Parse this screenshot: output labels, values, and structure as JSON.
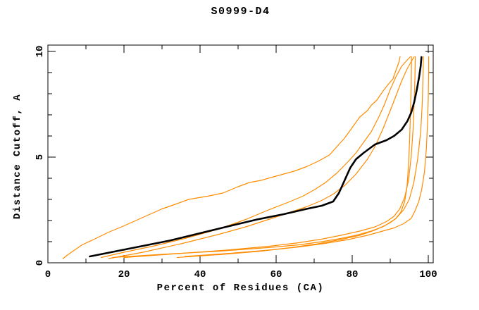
{
  "chart_data": {
    "type": "line",
    "title": "S0999-D4",
    "xlabel": "Percent of Residues (CA)",
    "ylabel": "Distance Cutoff, A",
    "xlim": [
      0,
      101.3
    ],
    "ylim": [
      0,
      10.3
    ],
    "x_major_ticks": [
      0,
      20,
      40,
      60,
      80,
      100
    ],
    "x_minor_ticks": [
      10,
      30,
      50,
      70,
      90
    ],
    "y_major_ticks": [
      0,
      5,
      10
    ],
    "y_minor_ticks": [
      1,
      2,
      3,
      4,
      6,
      7,
      8,
      9
    ],
    "grid": false,
    "legend": "none",
    "background": "#ffffff",
    "axis_color": "#000000",
    "model_color": "#ff8c00",
    "reference_color": "#000000",
    "series": [
      {
        "name": "orange-1-early",
        "color": "#ff8c00",
        "width": 1.2,
        "points": [
          [
            4,
            0.2
          ],
          [
            5,
            0.35
          ],
          [
            7,
            0.6
          ],
          [
            9,
            0.85
          ],
          [
            12,
            1.1
          ],
          [
            16,
            1.45
          ],
          [
            20,
            1.75
          ],
          [
            25,
            2.15
          ],
          [
            30,
            2.55
          ],
          [
            34,
            2.8
          ],
          [
            37,
            3.0
          ],
          [
            42,
            3.15
          ],
          [
            46,
            3.3
          ],
          [
            50,
            3.6
          ],
          [
            53,
            3.8
          ],
          [
            56,
            3.9
          ],
          [
            60,
            4.1
          ],
          [
            65,
            4.35
          ],
          [
            68,
            4.55
          ],
          [
            71,
            4.8
          ],
          [
            74,
            5.1
          ],
          [
            76,
            5.5
          ],
          [
            78,
            5.9
          ],
          [
            80,
            6.4
          ],
          [
            82,
            6.9
          ],
          [
            84,
            7.2
          ],
          [
            85,
            7.45
          ],
          [
            86.5,
            7.7
          ],
          [
            88,
            8.1
          ],
          [
            89.5,
            8.45
          ],
          [
            90.7,
            8.7
          ],
          [
            91.5,
            9.1
          ],
          [
            92.3,
            9.5
          ],
          [
            92.6,
            9.75
          ]
        ]
      },
      {
        "name": "orange-2-upper-tracker",
        "color": "#ff8c00",
        "width": 1.2,
        "points": [
          [
            14,
            0.25
          ],
          [
            20,
            0.5
          ],
          [
            28,
            0.8
          ],
          [
            36,
            1.15
          ],
          [
            45,
            1.6
          ],
          [
            52,
            2.05
          ],
          [
            58,
            2.5
          ],
          [
            63,
            2.85
          ],
          [
            67,
            3.15
          ],
          [
            70,
            3.45
          ],
          [
            73,
            3.8
          ],
          [
            76,
            4.25
          ],
          [
            79,
            4.8
          ],
          [
            81,
            5.2
          ],
          [
            83,
            5.7
          ],
          [
            85,
            6.2
          ],
          [
            87,
            6.9
          ],
          [
            88.5,
            7.5
          ],
          [
            90,
            8.2
          ],
          [
            91.5,
            8.8
          ],
          [
            93,
            9.3
          ],
          [
            94.5,
            9.6
          ],
          [
            95.3,
            9.75
          ]
        ]
      },
      {
        "name": "orange-3-lower-tracker",
        "color": "#ff8c00",
        "width": 1.2,
        "points": [
          [
            16,
            0.2
          ],
          [
            25,
            0.5
          ],
          [
            35,
            0.9
          ],
          [
            45,
            1.35
          ],
          [
            52,
            1.7
          ],
          [
            58,
            2.05
          ],
          [
            63,
            2.35
          ],
          [
            68,
            2.65
          ],
          [
            72,
            2.95
          ],
          [
            75,
            3.25
          ],
          [
            78,
            3.65
          ],
          [
            81,
            4.2
          ],
          [
            84,
            4.9
          ],
          [
            86,
            5.5
          ],
          [
            88,
            6.3
          ],
          [
            90,
            7.2
          ],
          [
            91.5,
            7.9
          ],
          [
            93,
            8.6
          ],
          [
            94.5,
            9.2
          ],
          [
            95.8,
            9.6
          ],
          [
            96.3,
            9.75
          ]
        ]
      },
      {
        "name": "orange-4-flat-bundle",
        "color": "#ff8c00",
        "width": 1.2,
        "points": [
          [
            17,
            0.25
          ],
          [
            30,
            0.4
          ],
          [
            45,
            0.55
          ],
          [
            58,
            0.72
          ],
          [
            66,
            0.85
          ],
          [
            72,
            1.0
          ],
          [
            77,
            1.15
          ],
          [
            81,
            1.3
          ],
          [
            85,
            1.5
          ],
          [
            88,
            1.7
          ],
          [
            90,
            1.9
          ],
          [
            91.5,
            2.1
          ],
          [
            92.8,
            2.4
          ],
          [
            93.8,
            2.9
          ],
          [
            94.4,
            3.6
          ],
          [
            94.8,
            4.6
          ],
          [
            95.1,
            5.8
          ],
          [
            95.3,
            7.0
          ],
          [
            95.5,
            8.3
          ],
          [
            95.6,
            9.75
          ]
        ]
      },
      {
        "name": "orange-5-flat-bundle",
        "color": "#ff8c00",
        "width": 1.2,
        "points": [
          [
            20,
            0.25
          ],
          [
            33,
            0.42
          ],
          [
            47,
            0.6
          ],
          [
            58,
            0.78
          ],
          [
            66,
            0.95
          ],
          [
            72,
            1.12
          ],
          [
            77,
            1.3
          ],
          [
            82,
            1.5
          ],
          [
            86,
            1.7
          ],
          [
            89,
            1.95
          ],
          [
            91,
            2.2
          ],
          [
            92.5,
            2.55
          ],
          [
            93.8,
            3.1
          ],
          [
            94.8,
            3.9
          ],
          [
            95.5,
            5.0
          ],
          [
            96,
            6.3
          ],
          [
            96.3,
            7.6
          ],
          [
            96.5,
            8.8
          ],
          [
            96.6,
            9.75
          ]
        ]
      },
      {
        "name": "orange-6-flat-bundle",
        "color": "#ff8c00",
        "width": 1.2,
        "points": [
          [
            34,
            0.25
          ],
          [
            46,
            0.4
          ],
          [
            56,
            0.55
          ],
          [
            64,
            0.72
          ],
          [
            71,
            0.9
          ],
          [
            77,
            1.1
          ],
          [
            82,
            1.3
          ],
          [
            86,
            1.55
          ],
          [
            89,
            1.8
          ],
          [
            91.5,
            2.1
          ],
          [
            93.5,
            2.5
          ],
          [
            95,
            3.0
          ],
          [
            96.2,
            3.8
          ],
          [
            97.2,
            4.9
          ],
          [
            98,
            6.2
          ],
          [
            98.4,
            7.5
          ],
          [
            98.6,
            8.7
          ],
          [
            98.7,
            9.75
          ]
        ]
      },
      {
        "name": "orange-7-late-bend",
        "color": "#ff8c00",
        "width": 1.2,
        "points": [
          [
            36,
            0.3
          ],
          [
            48,
            0.45
          ],
          [
            58,
            0.6
          ],
          [
            66,
            0.75
          ],
          [
            73,
            0.92
          ],
          [
            79,
            1.1
          ],
          [
            84,
            1.3
          ],
          [
            88,
            1.5
          ],
          [
            91,
            1.65
          ],
          [
            93.5,
            1.85
          ],
          [
            95.5,
            2.1
          ],
          [
            96.5,
            2.45
          ],
          [
            97.5,
            2.9
          ],
          [
            98.3,
            3.5
          ],
          [
            99,
            4.3
          ],
          [
            99.5,
            5.4
          ],
          [
            99.8,
            6.6
          ],
          [
            100,
            7.8
          ],
          [
            100.1,
            9.0
          ],
          [
            100.1,
            9.75
          ]
        ]
      },
      {
        "name": "black-main",
        "color": "#000000",
        "width": 2.6,
        "points": [
          [
            11,
            0.3
          ],
          [
            18,
            0.55
          ],
          [
            25,
            0.8
          ],
          [
            32,
            1.05
          ],
          [
            40,
            1.4
          ],
          [
            48,
            1.75
          ],
          [
            55,
            2.05
          ],
          [
            62,
            2.3
          ],
          [
            68,
            2.55
          ],
          [
            72,
            2.7
          ],
          [
            75,
            2.9
          ],
          [
            76.5,
            3.3
          ],
          [
            78,
            3.9
          ],
          [
            79.5,
            4.5
          ],
          [
            81,
            4.9
          ],
          [
            83,
            5.2
          ],
          [
            86,
            5.6
          ],
          [
            89,
            5.8
          ],
          [
            91,
            6.0
          ],
          [
            93,
            6.3
          ],
          [
            94.5,
            6.7
          ],
          [
            95.5,
            7.1
          ],
          [
            96.3,
            7.6
          ],
          [
            97,
            8.2
          ],
          [
            97.6,
            8.8
          ],
          [
            98,
            9.3
          ],
          [
            98.2,
            9.73
          ]
        ]
      }
    ],
    "plot_geometry_note": "x: 0-100 percent, y: 0-10 Angstrom cutoff"
  }
}
